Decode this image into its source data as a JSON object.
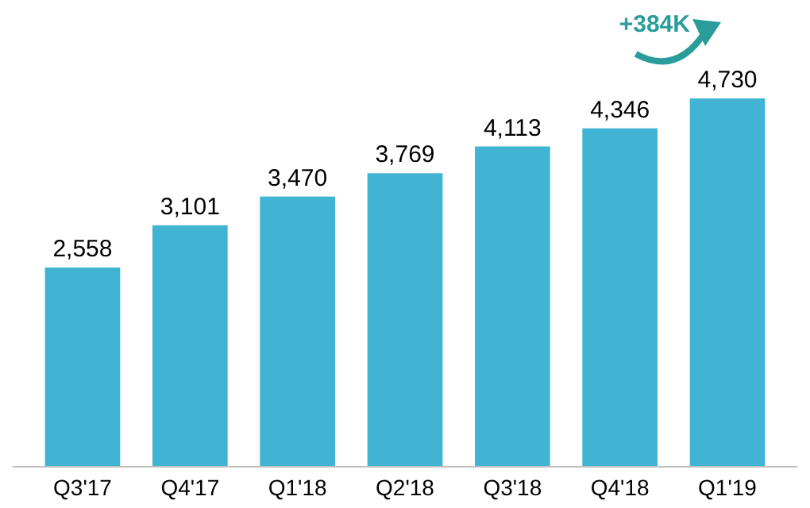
{
  "chart_data": {
    "type": "bar",
    "categories": [
      "Q3'17",
      "Q4'17",
      "Q1'18",
      "Q2'18",
      "Q3'18",
      "Q4'18",
      "Q1'19"
    ],
    "values": [
      2558,
      3101,
      3470,
      3769,
      4113,
      4346,
      4730
    ],
    "value_labels": [
      "2,558",
      "3,101",
      "3,470",
      "3,769",
      "4,113",
      "4,346",
      "4,730"
    ],
    "color": "#41b4d4",
    "annotations": [
      "+384K"
    ]
  }
}
